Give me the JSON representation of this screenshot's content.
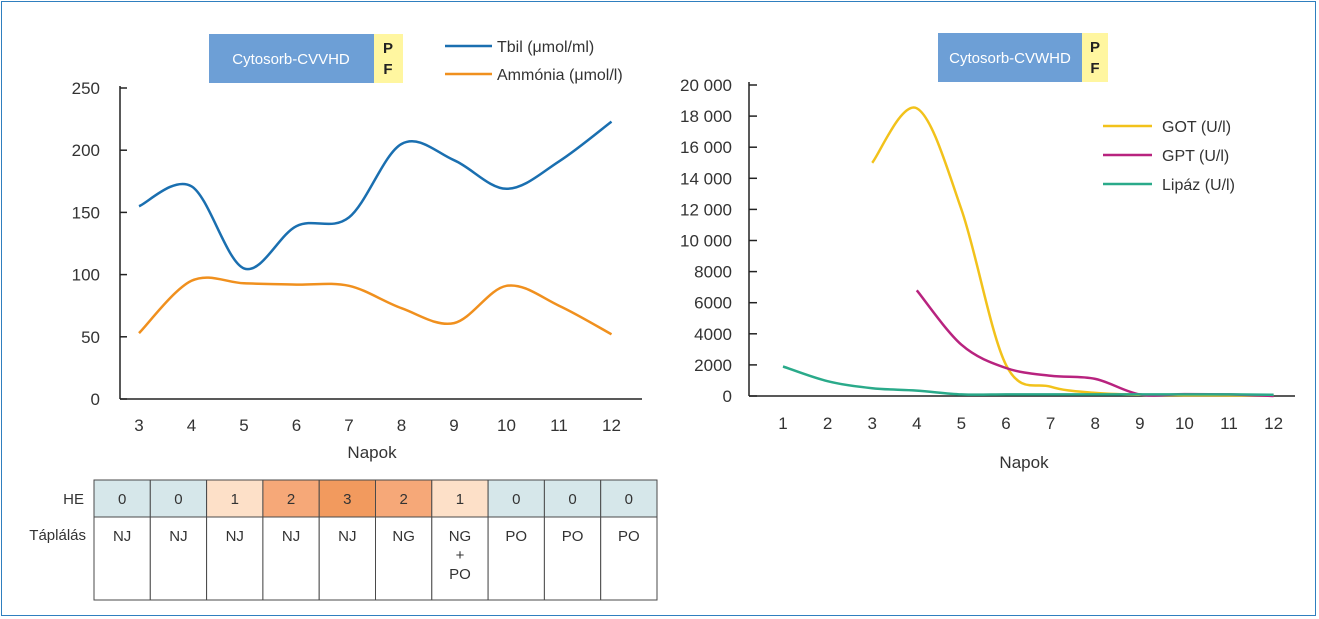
{
  "colors": {
    "tbil": "#1a6fb0",
    "ammonia": "#f0901e",
    "got": "#f2c21b",
    "gpt": "#b8237f",
    "lipaz": "#2aaa8a",
    "cytosorb_box": "#6d9fd6",
    "pf_box": "#fff6a0",
    "he_0": "#d6e7ea",
    "he_1": "#fde0c8",
    "he_2": "#f6a878",
    "he_3": "#f29a5e",
    "frame": "#2f7fbf"
  },
  "chart_data": [
    {
      "type": "line",
      "annotation_box": "Cytosorb-CVVHD",
      "annotation_pf": [
        "P",
        "F"
      ],
      "xlabel": "Napok",
      "x": [
        3,
        4,
        5,
        6,
        7,
        8,
        9,
        10,
        11,
        12
      ],
      "ylim": [
        0,
        250
      ],
      "yticks": [
        0,
        50,
        100,
        150,
        200,
        250
      ],
      "legend_position": "top-center",
      "series": [
        {
          "name": "Tbil (μmol/ml)",
          "color_key": "tbil",
          "values": [
            155,
            171,
            105,
            139,
            146,
            205,
            192,
            169,
            191,
            223
          ]
        },
        {
          "name": "Ammónia (μmol/l)",
          "color_key": "ammonia",
          "values": [
            53,
            95,
            93,
            92,
            91,
            73,
            61,
            91,
            75,
            52
          ]
        }
      ],
      "table": {
        "rows": [
          {
            "label": "HE",
            "values": [
              "0",
              "0",
              "1",
              "2",
              "3",
              "2",
              "1",
              "0",
              "0",
              "0"
            ]
          },
          {
            "label": "Táplálás",
            "values": [
              "NJ",
              "NJ",
              "NJ",
              "NJ",
              "NJ",
              "NG",
              "NG\n+\nPO",
              "PO",
              "PO",
              "PO"
            ]
          }
        ]
      }
    },
    {
      "type": "line",
      "annotation_box": "Cytosorb-CVWHD",
      "annotation_pf": [
        "P",
        "F"
      ],
      "xlabel": "Napok",
      "x": [
        1,
        2,
        3,
        4,
        5,
        6,
        7,
        8,
        9,
        10,
        11,
        12
      ],
      "ylim": [
        0,
        20000
      ],
      "yticks": [
        0,
        2000,
        4000,
        6000,
        8000,
        10000,
        12000,
        14000,
        16000,
        18000,
        20000
      ],
      "ytick_labels": [
        "0",
        "2000",
        "4000",
        "6000",
        "8000",
        "10 000",
        "12 000",
        "14 000",
        "16 000",
        "18 000",
        "20 000"
      ],
      "legend_position": "top-right",
      "series": [
        {
          "name": "GOT (U/l)",
          "color_key": "got",
          "x": [
            3,
            4,
            5,
            6,
            7,
            8,
            9,
            10,
            11,
            12
          ],
          "values": [
            15000,
            18500,
            12000,
            2000,
            600,
            200,
            80,
            50,
            40,
            30
          ]
        },
        {
          "name": "GPT (U/l)",
          "color_key": "gpt",
          "x": [
            4,
            5,
            6,
            7,
            8,
            9,
            10,
            11,
            12
          ],
          "values": [
            6800,
            3300,
            1800,
            1300,
            1100,
            100,
            120,
            100,
            0
          ]
        },
        {
          "name": "Lipáz (U/l)",
          "color_key": "lipaz",
          "x": [
            1,
            2,
            3,
            4,
            5,
            6,
            7,
            8,
            9,
            10,
            11,
            12
          ],
          "values": [
            1900,
            950,
            500,
            350,
            100,
            100,
            100,
            100,
            100,
            100,
            100,
            80
          ]
        }
      ]
    }
  ]
}
